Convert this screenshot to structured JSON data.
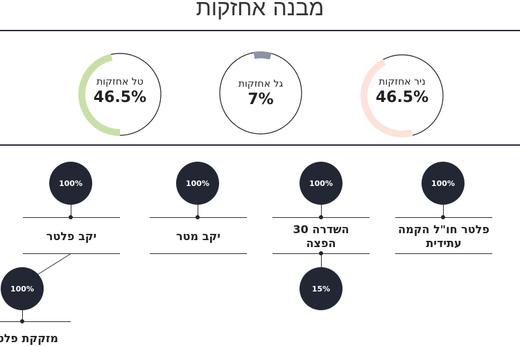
{
  "page": {
    "title": "מבנה אחזקות"
  },
  "holders": [
    {
      "name": "טל אחזקות",
      "percent": "46.5%",
      "fraction": 0.465,
      "color": "#c8e0a8"
    },
    {
      "name": "גל אחזקות",
      "percent": "7%",
      "fraction": 0.07,
      "color": "#8a93a8"
    },
    {
      "name": "ניר אחזקות",
      "percent": "46.5%",
      "fraction": 0.465,
      "color": "#fde2da"
    }
  ],
  "entities": [
    {
      "name": "יקב פלטר",
      "percent": "100%"
    },
    {
      "name": "יקב מטר",
      "percent": "100%"
    },
    {
      "name": "השדרה 30 הפצה",
      "percent": "100%"
    },
    {
      "name": "פלטר חו\"ל הקמה עתידית",
      "percent": "100%"
    },
    {
      "name": "מזקקת פלטר",
      "percent": "100%"
    },
    {
      "name": "",
      "percent": "15%"
    }
  ]
}
